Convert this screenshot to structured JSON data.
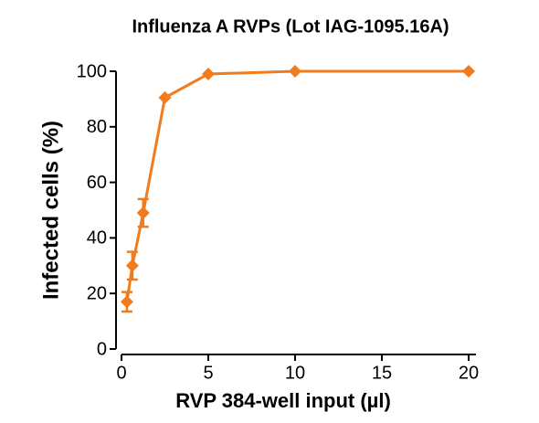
{
  "chart_data": {
    "type": "line",
    "title": "Influenza A RVPs (Lot IAG-1095.16A)",
    "x_label": "RVP 384-well input (µl)",
    "y_label": "Infected cells (%)",
    "series": [
      {
        "name": "Infected cells",
        "color": "#f07c1e",
        "x": [
          0.3125,
          0.625,
          1.25,
          2.5,
          5,
          10,
          20
        ],
        "values": [
          17,
          30,
          49,
          90.5,
          99,
          100,
          100
        ],
        "errors": [
          3.5,
          5,
          5,
          null,
          null,
          null,
          null
        ]
      }
    ],
    "xlim": [
      0,
      20
    ],
    "xticks": [
      0,
      5,
      10,
      15,
      20
    ],
    "ylim": [
      0,
      100
    ],
    "yticks": [
      0,
      20,
      40,
      60,
      80,
      100
    ]
  }
}
